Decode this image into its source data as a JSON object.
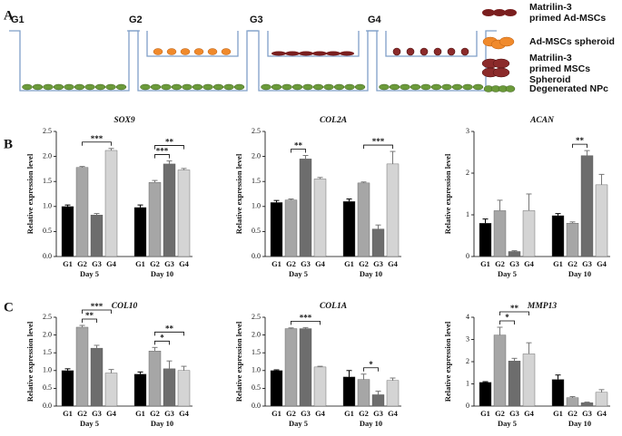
{
  "panel_labels": [
    "A",
    "B",
    "C"
  ],
  "panel_a": {
    "groups": [
      "G1",
      "G2",
      "G3",
      "G4"
    ],
    "legend": [
      [
        "Matrilin-3",
        "primed Ad-MSCs"
      ],
      [
        "Ad-MSCs spheroid"
      ],
      [
        "Matrilin-3",
        "primed MSCs",
        "Spheroid"
      ],
      [
        "Degenerated NPc"
      ]
    ]
  },
  "chart_data": [
    {
      "type": "bar",
      "title": "SOX9",
      "ylabel": "Relative expression level",
      "categories": [
        "Day 5",
        "Day 10"
      ],
      "ylim": [
        0,
        2.5
      ],
      "yticks": [
        {
          "value": 0,
          "label": "0.0"
        },
        {
          "value": 0.5,
          "label": "0.5"
        },
        {
          "value": 1,
          "label": "1.0"
        },
        {
          "value": 1.5,
          "label": "1.5"
        },
        {
          "value": 2,
          "label": "2.0"
        },
        {
          "value": 2.5,
          "label": "2.5"
        }
      ],
      "series": [
        {
          "name": "G1",
          "color": "#000000",
          "values": [
            1.0,
            0.98
          ],
          "errors": [
            0.03,
            0.05
          ]
        },
        {
          "name": "G2",
          "color": "#a6a6a6",
          "values": [
            1.78,
            1.48
          ],
          "errors": [
            0.02,
            0.04
          ]
        },
        {
          "name": "G3",
          "color": "#6d6d6d",
          "values": [
            0.83,
            1.85
          ],
          "errors": [
            0.03,
            0.06
          ]
        },
        {
          "name": "G4",
          "color": "#d4d4d4",
          "values": [
            2.12,
            1.73
          ],
          "errors": [
            0.04,
            0.03
          ]
        }
      ],
      "brackets": [
        {
          "label": "***",
          "category": "Day 5",
          "between": [
            "G2",
            "G4"
          ]
        },
        {
          "label": "***",
          "category": "Day 10",
          "between": [
            "G2",
            "G3"
          ]
        },
        {
          "label": "**",
          "category": "Day 10",
          "between": [
            "G2",
            "G4"
          ]
        }
      ]
    },
    {
      "type": "bar",
      "title": "COL2A",
      "ylabel": "Relative expression level",
      "categories": [
        "Day 5",
        "Day 10"
      ],
      "ylim": [
        0,
        2.5
      ],
      "yticks": [
        {
          "value": 0,
          "label": "0.0"
        },
        {
          "value": 0.5,
          "label": "0.5"
        },
        {
          "value": 1,
          "label": "1.0"
        },
        {
          "value": 1.5,
          "label": "1.5"
        },
        {
          "value": 2,
          "label": "2.0"
        },
        {
          "value": 2.5,
          "label": "2.5"
        }
      ],
      "series": [
        {
          "name": "G1",
          "color": "#000000",
          "values": [
            1.08,
            1.1
          ],
          "errors": [
            0.04,
            0.05
          ]
        },
        {
          "name": "G2",
          "color": "#a6a6a6",
          "values": [
            1.13,
            1.47
          ],
          "errors": [
            0.02,
            0.02
          ]
        },
        {
          "name": "G3",
          "color": "#6d6d6d",
          "values": [
            1.95,
            0.55
          ],
          "errors": [
            0.07,
            0.08
          ]
        },
        {
          "name": "G4",
          "color": "#d4d4d4",
          "values": [
            1.55,
            1.85
          ],
          "errors": [
            0.03,
            0.25
          ]
        }
      ],
      "brackets": [
        {
          "label": "**",
          "category": "Day 5",
          "between": [
            "G2",
            "G3"
          ]
        },
        {
          "label": "***",
          "category": "Day 10",
          "between": [
            "G2",
            "G4"
          ]
        }
      ]
    },
    {
      "type": "bar",
      "title": "ACAN",
      "ylabel": "Relative expression level",
      "categories": [
        "Day 5",
        "Day 10"
      ],
      "ylim": [
        0,
        3
      ],
      "yticks": [
        0,
        1,
        2,
        3
      ],
      "series": [
        {
          "name": "G1",
          "color": "#000000",
          "values": [
            0.8,
            0.98
          ],
          "errors": [
            0.1,
            0.05
          ]
        },
        {
          "name": "G2",
          "color": "#a6a6a6",
          "values": [
            1.1,
            0.8
          ],
          "errors": [
            0.25,
            0.03
          ]
        },
        {
          "name": "G3",
          "color": "#6d6d6d",
          "values": [
            0.12,
            2.42
          ],
          "errors": [
            0.02,
            0.12
          ]
        },
        {
          "name": "G4",
          "color": "#d4d4d4",
          "values": [
            1.1,
            1.72
          ],
          "errors": [
            0.4,
            0.25
          ]
        }
      ],
      "brackets": [
        {
          "label": "**",
          "category": "Day 10",
          "between": [
            "G2",
            "G3"
          ]
        }
      ]
    },
    {
      "type": "bar",
      "title": "COL10",
      "ylabel": "Relative expression level",
      "categories": [
        "Day 5",
        "Day 10"
      ],
      "ylim": [
        0,
        2.5
      ],
      "yticks": [
        {
          "value": 0,
          "label": "0.0"
        },
        {
          "value": 0.5,
          "label": "0.5"
        },
        {
          "value": 1,
          "label": "1.0"
        },
        {
          "value": 1.5,
          "label": "1.5"
        },
        {
          "value": 2,
          "label": "2.0"
        },
        {
          "value": 2.5,
          "label": "2.5"
        }
      ],
      "series": [
        {
          "name": "G1",
          "color": "#000000",
          "values": [
            1.0,
            0.9
          ],
          "errors": [
            0.05,
            0.06
          ]
        },
        {
          "name": "G2",
          "color": "#a6a6a6",
          "values": [
            2.22,
            1.55
          ],
          "errors": [
            0.05,
            0.1
          ]
        },
        {
          "name": "G3",
          "color": "#6d6d6d",
          "values": [
            1.63,
            1.05
          ],
          "errors": [
            0.08,
            0.22
          ]
        },
        {
          "name": "G4",
          "color": "#d4d4d4",
          "values": [
            0.93,
            1.0
          ],
          "errors": [
            0.1,
            0.12
          ]
        }
      ],
      "brackets": [
        {
          "label": "**",
          "category": "Day 5",
          "between": [
            "G2",
            "G3"
          ]
        },
        {
          "label": "***",
          "category": "Day 5",
          "between": [
            "G2",
            "G4"
          ]
        },
        {
          "label": "*",
          "category": "Day 10",
          "between": [
            "G2",
            "G3"
          ]
        },
        {
          "label": "**",
          "category": "Day 10",
          "between": [
            "G2",
            "G4"
          ]
        }
      ]
    },
    {
      "type": "bar",
      "title": "COL1A",
      "ylabel": "Relative expression level",
      "categories": [
        "Day 5",
        "Day 10"
      ],
      "ylim": [
        0,
        2.5
      ],
      "yticks": [
        {
          "value": 0,
          "label": "0.0"
        },
        {
          "value": 0.5,
          "label": "0.5"
        },
        {
          "value": 1,
          "label": "1.0"
        },
        {
          "value": 1.5,
          "label": "1.5"
        },
        {
          "value": 2,
          "label": "2.0"
        },
        {
          "value": 2.5,
          "label": "2.5"
        }
      ],
      "series": [
        {
          "name": "G1",
          "color": "#000000",
          "values": [
            1.0,
            0.82
          ],
          "errors": [
            0.02,
            0.18
          ]
        },
        {
          "name": "G2",
          "color": "#a6a6a6",
          "values": [
            2.18,
            0.75
          ],
          "errors": [
            0.02,
            0.15
          ]
        },
        {
          "name": "G3",
          "color": "#6d6d6d",
          "values": [
            2.18,
            0.32
          ],
          "errors": [
            0.03,
            0.1
          ]
        },
        {
          "name": "G4",
          "color": "#d4d4d4",
          "values": [
            1.1,
            0.72
          ],
          "errors": [
            0.02,
            0.07
          ]
        }
      ],
      "brackets": [
        {
          "label": "***",
          "category": "Day 5",
          "between": [
            "G2",
            "G4"
          ]
        },
        {
          "label": "*",
          "category": "Day 10",
          "between": [
            "G2",
            "G3"
          ]
        }
      ]
    },
    {
      "type": "bar",
      "title": "MMP13",
      "ylabel": "Relative expression level",
      "categories": [
        "Day 5",
        "Day 10"
      ],
      "ylim": [
        0,
        4
      ],
      "yticks": [
        0,
        1,
        2,
        3,
        4
      ],
      "series": [
        {
          "name": "G1",
          "color": "#000000",
          "values": [
            1.07,
            1.2
          ],
          "errors": [
            0.03,
            0.2
          ]
        },
        {
          "name": "G2",
          "color": "#a6a6a6",
          "values": [
            3.2,
            0.38
          ],
          "errors": [
            0.35,
            0.05
          ]
        },
        {
          "name": "G3",
          "color": "#6d6d6d",
          "values": [
            2.03,
            0.15
          ],
          "errors": [
            0.12,
            0.03
          ]
        },
        {
          "name": "G4",
          "color": "#d4d4d4",
          "values": [
            2.35,
            0.62
          ],
          "errors": [
            0.5,
            0.12
          ]
        }
      ],
      "brackets": [
        {
          "label": "*",
          "category": "Day 5",
          "between": [
            "G2",
            "G3"
          ]
        },
        {
          "label": "**",
          "category": "Day 5",
          "between": [
            "G2",
            "G4"
          ]
        }
      ]
    }
  ]
}
